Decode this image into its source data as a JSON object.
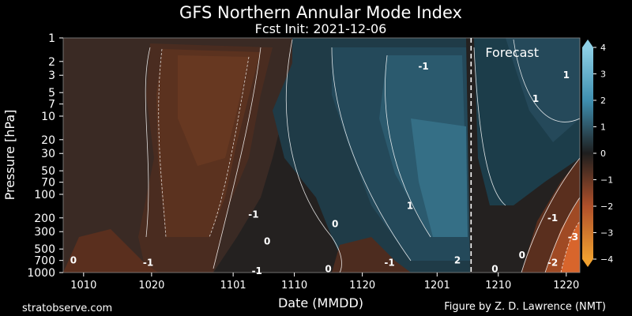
{
  "chart_data": {
    "type": "heatmap",
    "title": "GFS Northern Annular Mode Index",
    "subtitle": "Fcst Init: 2021-12-06",
    "xlabel": "Date (MMDD)",
    "ylabel": "Pressure [hPa]",
    "x_axis": {
      "unit": "days",
      "range": [
        "1007",
        "1221"
      ],
      "ticks": [
        {
          "label": "1010",
          "day": 3
        },
        {
          "label": "1020",
          "day": 13
        },
        {
          "label": "1101",
          "day": 25
        },
        {
          "label": "1110",
          "day": 34
        },
        {
          "label": "1120",
          "day": 44
        },
        {
          "label": "1201",
          "day": 55
        },
        {
          "label": "1210",
          "day": 64
        },
        {
          "label": "1220",
          "day": 74
        }
      ]
    },
    "y_axis": {
      "scale": "log",
      "inverted": true,
      "range": [
        1000,
        1
      ],
      "ticks": [
        "1",
        "2",
        "3",
        "5",
        "7",
        "10",
        "20",
        "30",
        "50",
        "70",
        "100",
        "200",
        "300",
        "500",
        "700",
        "1000"
      ]
    },
    "colorbar": {
      "range": [
        -4,
        4
      ],
      "ticks": [
        "4",
        "3",
        "2",
        "1",
        "0",
        "−1",
        "−2",
        "−3",
        "−4"
      ],
      "negative_color": "#d9622b",
      "positive_color": "#4b9bb7",
      "neutral_color": "#1e1e1e"
    },
    "forecast_marker": {
      "date": "1206",
      "day": 60,
      "label": "Forecast"
    },
    "contour_labels": [
      {
        "text": "0",
        "day": 1.5,
        "p": 700
      },
      {
        "text": "-1",
        "day": 12.5,
        "p": 750
      },
      {
        "text": "-1",
        "day": 28,
        "p": 180
      },
      {
        "text": "0",
        "day": 30,
        "p": 400
      },
      {
        "text": "-1",
        "day": 28.5,
        "p": 950
      },
      {
        "text": "0",
        "day": 40,
        "p": 240
      },
      {
        "text": "0",
        "day": 39,
        "p": 900
      },
      {
        "text": "-1",
        "day": 48,
        "p": 750
      },
      {
        "text": "1",
        "day": 51,
        "p": 140
      },
      {
        "text": "-1",
        "day": 53,
        "p": 2.3
      },
      {
        "text": "2",
        "day": 58,
        "p": 700
      },
      {
        "text": "0",
        "day": 63.5,
        "p": 900
      },
      {
        "text": "0",
        "day": 67.5,
        "p": 600
      },
      {
        "text": "1",
        "day": 74,
        "p": 3
      },
      {
        "text": "1",
        "day": 69.5,
        "p": 6
      },
      {
        "text": "-1",
        "day": 72,
        "p": 200
      },
      {
        "text": "-2",
        "day": 72,
        "p": 750
      },
      {
        "text": "-3",
        "day": 75,
        "p": 350
      }
    ],
    "series": [],
    "legend": "colorbar-right",
    "grid": false
  },
  "footer": {
    "left": "stratobserve.com",
    "right": "Figure by Z. D. Lawrence (NMT)"
  }
}
